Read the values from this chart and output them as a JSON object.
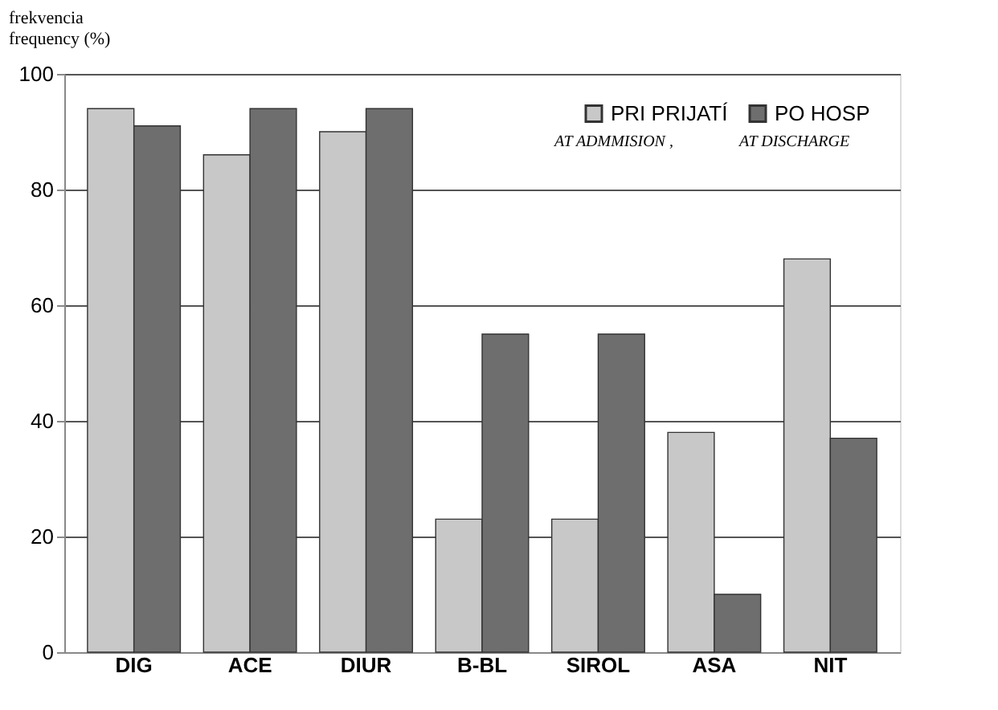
{
  "chart_data": {
    "type": "bar",
    "ylabel": "frekvencia\nfrequency (%)",
    "categories": [
      "DIG",
      "ACE",
      "DIUR",
      "B-BL",
      "SIROL",
      "ASA",
      "NIT"
    ],
    "series": [
      {
        "name": "PRI PRIJATÍ",
        "color": "#c8c8c8",
        "values": [
          94,
          86,
          90,
          23,
          23,
          38,
          68
        ]
      },
      {
        "name": "PO HOSP",
        "color": "#6e6e6e",
        "values": [
          91,
          94,
          94,
          55,
          55,
          10,
          37
        ]
      }
    ],
    "ylim": [
      0,
      100
    ],
    "yticks": [
      0,
      20,
      40,
      60,
      80,
      100
    ],
    "grid": "y",
    "legend": "top right",
    "annotations": [
      "AT ADMMISION ,",
      "AT DISCHARGE"
    ]
  }
}
